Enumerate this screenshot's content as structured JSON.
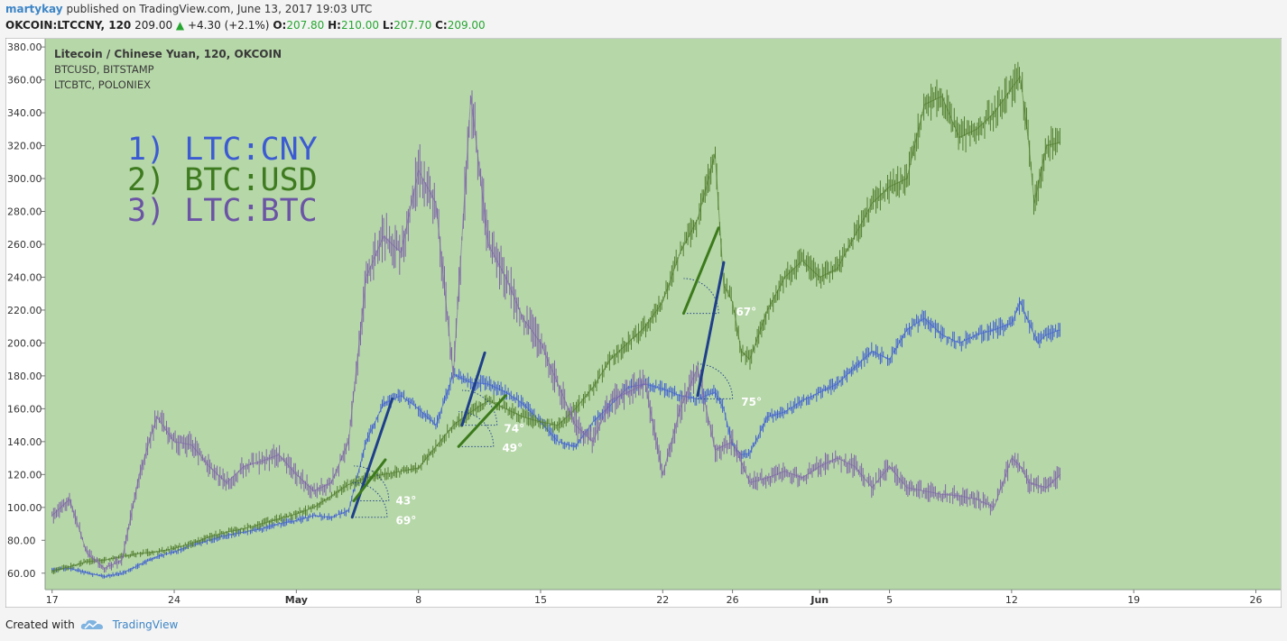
{
  "header": {
    "user": "martykay",
    "published_text": "published on TradingView.com, June 13, 2017 19:03 UTC",
    "symbol": "OKCOIN:LTCCNY, 120",
    "last": "209.00",
    "change_arrow": "▲",
    "change": "+4.30 (+2.1%)",
    "o_label": "O:",
    "o_value": "207.80",
    "h_label": "H:",
    "h_value": "210.00",
    "l_label": "L:",
    "l_value": "207.70",
    "c_label": "C:",
    "c_value": "209.00"
  },
  "footer": {
    "created_with": "Created with",
    "brand": "TradingView"
  },
  "colors": {
    "plot_bg": "#b6d7a8",
    "ltc_cny": "#3c5bd3",
    "btc_usd": "#4f7a2a",
    "ltc_btc": "#7d62a8",
    "trend_blue": "#1f3f8a",
    "trend_green": "#3c7a1c",
    "angle_label": "#ffffff"
  },
  "chart_data": {
    "type": "line",
    "legend": [
      "Litecoin / Chinese Yuan, 120, OKCOIN",
      "BTCUSD, BITSTAMP",
      "LTCBTC, POLONIEX"
    ],
    "annotation_list": [
      {
        "text": "1) LTC:CNY",
        "color": "#3c5bd3"
      },
      {
        "text": "2) BTC:USD",
        "color": "#3e7a1f"
      },
      {
        "text": "3) LTC:BTC",
        "color": "#6b54a6"
      }
    ],
    "ylim": [
      50,
      385
    ],
    "y_ticks": [
      "380.00",
      "360.00",
      "340.00",
      "320.00",
      "300.00",
      "280.00",
      "260.00",
      "240.00",
      "220.00",
      "200.00",
      "180.00",
      "160.00",
      "140.00",
      "120.00",
      "100.00",
      "80.00",
      "60.00"
    ],
    "y_tick_values": [
      380,
      360,
      340,
      320,
      300,
      280,
      260,
      240,
      220,
      200,
      180,
      160,
      140,
      120,
      100,
      80,
      60
    ],
    "x_day_range": [
      16.6,
      57.0
    ],
    "x_ticks": [
      {
        "label": "17",
        "day": 17
      },
      {
        "label": "24",
        "day": 24
      },
      {
        "label": "May",
        "day": 31,
        "bold": true
      },
      {
        "label": "8",
        "day": 38
      },
      {
        "label": "15",
        "day": 45
      },
      {
        "label": "22",
        "day": 52
      },
      {
        "label": "26",
        "day": 56
      },
      {
        "label": "Jun",
        "day": 61,
        "bold": true
      },
      {
        "label": "5",
        "day": 65
      },
      {
        "label": "12",
        "day": 72
      },
      {
        "label": "19",
        "day": 79
      },
      {
        "label": "26",
        "day": 86
      }
    ],
    "series": [
      {
        "name": "Litecoin / Chinese Yuan, 120, OKCOIN",
        "color": "#3c5bd3",
        "points": [
          [
            17,
            62
          ],
          [
            18,
            63
          ],
          [
            19,
            60
          ],
          [
            20,
            58
          ],
          [
            21,
            60
          ],
          [
            22,
            65
          ],
          [
            23,
            70
          ],
          [
            24,
            73
          ],
          [
            25,
            77
          ],
          [
            26,
            80
          ],
          [
            27,
            83
          ],
          [
            28,
            85
          ],
          [
            29,
            87
          ],
          [
            30,
            90
          ],
          [
            31,
            92
          ],
          [
            32,
            95
          ],
          [
            33,
            94
          ],
          [
            34,
            98
          ],
          [
            35,
            140
          ],
          [
            36,
            163
          ],
          [
            37,
            168
          ],
          [
            38,
            160
          ],
          [
            39,
            150
          ],
          [
            40,
            181
          ],
          [
            41,
            176
          ],
          [
            42,
            175
          ],
          [
            43,
            170
          ],
          [
            44,
            163
          ],
          [
            45,
            152
          ],
          [
            46,
            140
          ],
          [
            47,
            137
          ],
          [
            48,
            152
          ],
          [
            49,
            162
          ],
          [
            50,
            173
          ],
          [
            51,
            175
          ],
          [
            52,
            172
          ],
          [
            53,
            168
          ],
          [
            54,
            166
          ],
          [
            55,
            170
          ],
          [
            55.5,
            160
          ],
          [
            56,
            138
          ],
          [
            56.5,
            132
          ],
          [
            57,
            133
          ],
          [
            58,
            155
          ],
          [
            59,
            158
          ],
          [
            60,
            165
          ],
          [
            61,
            170
          ],
          [
            62,
            175
          ],
          [
            63,
            185
          ],
          [
            64,
            195
          ],
          [
            65,
            190
          ],
          [
            66,
            208
          ],
          [
            67,
            215
          ],
          [
            68,
            205
          ],
          [
            69,
            200
          ],
          [
            70,
            205
          ],
          [
            71,
            208
          ],
          [
            72,
            212
          ],
          [
            72.5,
            225
          ],
          [
            73,
            212
          ],
          [
            73.5,
            200
          ],
          [
            74,
            205
          ],
          [
            74.8,
            208
          ]
        ]
      },
      {
        "name": "BTCUSD, BITSTAMP",
        "color": "#4f7a2a",
        "points": [
          [
            17,
            61
          ],
          [
            18,
            64
          ],
          [
            19,
            67
          ],
          [
            20,
            68
          ],
          [
            21,
            70
          ],
          [
            22,
            72
          ],
          [
            23,
            73
          ],
          [
            24,
            75
          ],
          [
            25,
            78
          ],
          [
            26,
            82
          ],
          [
            27,
            85
          ],
          [
            28,
            87
          ],
          [
            29,
            90
          ],
          [
            30,
            93
          ],
          [
            31,
            96
          ],
          [
            32,
            100
          ],
          [
            33,
            107
          ],
          [
            34,
            114
          ],
          [
            35,
            118
          ],
          [
            36,
            120
          ],
          [
            37,
            122
          ],
          [
            38,
            124
          ],
          [
            39,
            137
          ],
          [
            40,
            150
          ],
          [
            41,
            158
          ],
          [
            42,
            165
          ],
          [
            43,
            160
          ],
          [
            44,
            155
          ],
          [
            45,
            152
          ],
          [
            46,
            150
          ],
          [
            47,
            160
          ],
          [
            48,
            173
          ],
          [
            49,
            190
          ],
          [
            50,
            200
          ],
          [
            51,
            210
          ],
          [
            52,
            225
          ],
          [
            53,
            255
          ],
          [
            54,
            275
          ],
          [
            55,
            315
          ],
          [
            55.5,
            235
          ],
          [
            56,
            225
          ],
          [
            56.5,
            195
          ],
          [
            57,
            190
          ],
          [
            58,
            220
          ],
          [
            59,
            240
          ],
          [
            60,
            250
          ],
          [
            61,
            240
          ],
          [
            62,
            245
          ],
          [
            63,
            265
          ],
          [
            64,
            285
          ],
          [
            65,
            295
          ],
          [
            66,
            300
          ],
          [
            67,
            345
          ],
          [
            68,
            350
          ],
          [
            69,
            325
          ],
          [
            70,
            330
          ],
          [
            71,
            340
          ],
          [
            72,
            355
          ],
          [
            72.5,
            362
          ],
          [
            73,
            320
          ],
          [
            73.3,
            285
          ],
          [
            73.6,
            300
          ],
          [
            74,
            320
          ],
          [
            74.8,
            322
          ]
        ]
      },
      {
        "name": "LTCBTC, POLONIEX",
        "color": "#7d62a8",
        "points": [
          [
            17,
            95
          ],
          [
            18,
            105
          ],
          [
            19,
            72
          ],
          [
            20,
            63
          ],
          [
            21,
            68
          ],
          [
            22,
            120
          ],
          [
            23,
            155
          ],
          [
            24,
            140
          ],
          [
            25,
            138
          ],
          [
            26,
            125
          ],
          [
            27,
            115
          ],
          [
            28,
            125
          ],
          [
            29,
            128
          ],
          [
            30,
            132
          ],
          [
            31,
            120
          ],
          [
            32,
            110
          ],
          [
            33,
            115
          ],
          [
            34,
            140
          ],
          [
            35,
            240
          ],
          [
            36,
            265
          ],
          [
            37,
            255
          ],
          [
            38,
            305
          ],
          [
            39,
            285
          ],
          [
            40,
            180
          ],
          [
            41,
            350
          ],
          [
            42,
            260
          ],
          [
            43,
            240
          ],
          [
            44,
            215
          ],
          [
            45,
            200
          ],
          [
            46,
            175
          ],
          [
            47,
            150
          ],
          [
            48,
            140
          ],
          [
            49,
            165
          ],
          [
            50,
            170
          ],
          [
            51,
            175
          ],
          [
            52,
            120
          ],
          [
            53,
            160
          ],
          [
            54,
            185
          ],
          [
            55,
            135
          ],
          [
            56,
            140
          ],
          [
            57,
            115
          ],
          [
            58,
            118
          ],
          [
            59,
            122
          ],
          [
            60,
            118
          ],
          [
            61,
            125
          ],
          [
            62,
            130
          ],
          [
            63,
            125
          ],
          [
            64,
            112
          ],
          [
            65,
            125
          ],
          [
            66,
            112
          ],
          [
            67,
            110
          ],
          [
            68,
            108
          ],
          [
            69,
            107
          ],
          [
            70,
            105
          ],
          [
            71,
            100
          ],
          [
            72,
            130
          ],
          [
            72.5,
            125
          ],
          [
            73,
            115
          ],
          [
            74,
            112
          ],
          [
            74.8,
            120
          ]
        ]
      }
    ],
    "trend_lines": [
      {
        "color": "#1f3f8a",
        "from": [
          34.2,
          94
        ],
        "to": [
          36.5,
          166
        ]
      },
      {
        "color": "#3c7a1c",
        "from": [
          34.3,
          104
        ],
        "to": [
          36.1,
          129
        ]
      },
      {
        "color": "#1f3f8a",
        "from": [
          40.5,
          150
        ],
        "to": [
          41.8,
          194
        ]
      },
      {
        "color": "#3c7a1c",
        "from": [
          40.3,
          137
        ],
        "to": [
          43.0,
          168
        ]
      },
      {
        "color": "#1f3f8a",
        "from": [
          54.0,
          168
        ],
        "to": [
          55.5,
          249
        ]
      },
      {
        "color": "#3c7a1c",
        "from": [
          53.2,
          218
        ],
        "to": [
          55.2,
          270
        ]
      }
    ],
    "angle_arcs": [
      {
        "center": [
          34.2,
          94
        ],
        "radius_days": 2.0
      },
      {
        "center": [
          34.3,
          104
        ],
        "radius_days": 2.0
      },
      {
        "center": [
          40.5,
          150
        ],
        "radius_days": 2.0
      },
      {
        "center": [
          40.3,
          137
        ],
        "radius_days": 2.0
      },
      {
        "center": [
          54.0,
          166
        ],
        "radius_days": 2.0
      },
      {
        "center": [
          53.2,
          218
        ],
        "radius_days": 2.0
      }
    ],
    "angle_labels": [
      {
        "text": "43°",
        "x_day": 36.7,
        "y": 104
      },
      {
        "text": "69°",
        "x_day": 36.7,
        "y": 92
      },
      {
        "text": "74°",
        "x_day": 42.9,
        "y": 148
      },
      {
        "text": "49°",
        "x_day": 42.8,
        "y": 136
      },
      {
        "text": "67°",
        "x_day": 56.2,
        "y": 219
      },
      {
        "text": "75°",
        "x_day": 56.5,
        "y": 164
      }
    ],
    "grid": false
  }
}
